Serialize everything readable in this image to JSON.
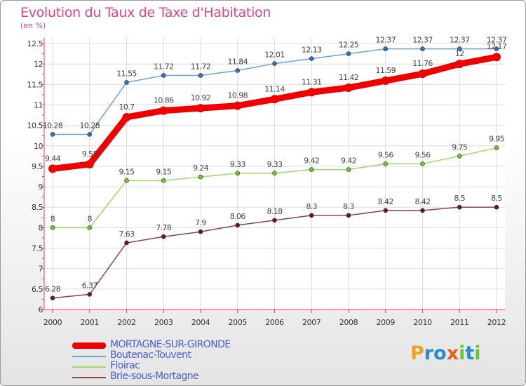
{
  "title": "Evolution du Taux de Taxe d'Habitation",
  "subtitle": "(en %)",
  "chart_data": {
    "type": "line",
    "x": [
      "2000",
      "2001",
      "2002",
      "2003",
      "2004",
      "2005",
      "2006",
      "2007",
      "2008",
      "2009",
      "2010",
      "2011",
      "2012"
    ],
    "ylim": [
      6,
      12.5
    ],
    "yticks": [
      "6",
      "6.5",
      "7",
      "7.5",
      "8",
      "8.5",
      "9",
      "9.5",
      "10",
      "10.5",
      "11",
      "11.5",
      "12",
      "12.5"
    ],
    "grid": true,
    "legend_position": "bottom-left",
    "series": [
      {
        "name": "MORTAGNE-SUR-GIRONDE",
        "color": "#ee0000",
        "marker": "#ee0000",
        "thick": true,
        "values": [
          9.44,
          9.55,
          10.7,
          10.86,
          10.92,
          10.98,
          11.14,
          11.31,
          11.42,
          11.59,
          11.76,
          12,
          12.17
        ],
        "labels": [
          "9.44",
          "9.55",
          "10.7",
          "10.86",
          "10.92",
          "10.98",
          "11.14",
          "11.31",
          "11.42",
          "11.59",
          "11.76",
          "12",
          "12.17"
        ]
      },
      {
        "name": "Boutenac-Touvent",
        "color": "#6fa1cc",
        "marker": "#2a78c2",
        "thick": false,
        "values": [
          10.28,
          10.28,
          11.55,
          11.72,
          11.72,
          11.84,
          12.01,
          12.13,
          12.25,
          12.37,
          12.37,
          12.37,
          12.37
        ],
        "labels": [
          "10.28",
          "10.28",
          "11.55",
          "11.72",
          "11.72",
          "11.84",
          "12.01",
          "12.13",
          "12.25",
          "12.37",
          "12.37",
          "12.37",
          "12.37"
        ]
      },
      {
        "name": "Floirac",
        "color": "#9fd86a",
        "marker": "#6cc531",
        "thick": false,
        "values": [
          8,
          8,
          9.15,
          9.15,
          9.24,
          9.33,
          9.33,
          9.42,
          9.42,
          9.56,
          9.56,
          9.75,
          9.95
        ],
        "labels": [
          "8",
          "8",
          "9.15",
          "9.15",
          "9.24",
          "9.33",
          "9.33",
          "9.42",
          "9.42",
          "9.56",
          "9.56",
          "9.75",
          "9.95"
        ]
      },
      {
        "name": "Brie-sous-Mortagne",
        "color": "#8a4747",
        "marker": "#6b1a1a",
        "thick": false,
        "values": [
          6.28,
          6.37,
          7.63,
          7.78,
          7.9,
          8.06,
          8.18,
          8.3,
          8.3,
          8.42,
          8.42,
          8.5,
          8.5
        ],
        "labels": [
          "6.28",
          "6.37",
          "7.63",
          "7.78",
          "7.9",
          "8.06",
          "8.18",
          "8.3",
          "8.3",
          "8.42",
          "8.42",
          "8.5",
          "8.5"
        ]
      }
    ]
  },
  "legend": [
    {
      "label": "MORTAGNE-SUR-GIRONDE",
      "color": "#ee0000",
      "thick": true
    },
    {
      "label": "Boutenac-Touvent",
      "color": "#6fa1cc",
      "thick": false
    },
    {
      "label": "Floirac",
      "color": "#9fd86a",
      "thick": false
    },
    {
      "label": "Brie-sous-Mortagne",
      "color": "#8a4747",
      "thick": false
    }
  ],
  "logo": {
    "text": "Proxiti",
    "letters": [
      {
        "ch": "P",
        "color": "#f0a020"
      },
      {
        "ch": "r",
        "color": "#2a8ad0"
      },
      {
        "ch": "o",
        "color": "#2a8ad0"
      },
      {
        "ch": "x",
        "color": "#e8601a"
      },
      {
        "ch": "i",
        "color": "#6cc531"
      },
      {
        "ch": "t",
        "color": "#2a8ad0"
      },
      {
        "ch": "i",
        "color": "#6cc531"
      }
    ]
  }
}
